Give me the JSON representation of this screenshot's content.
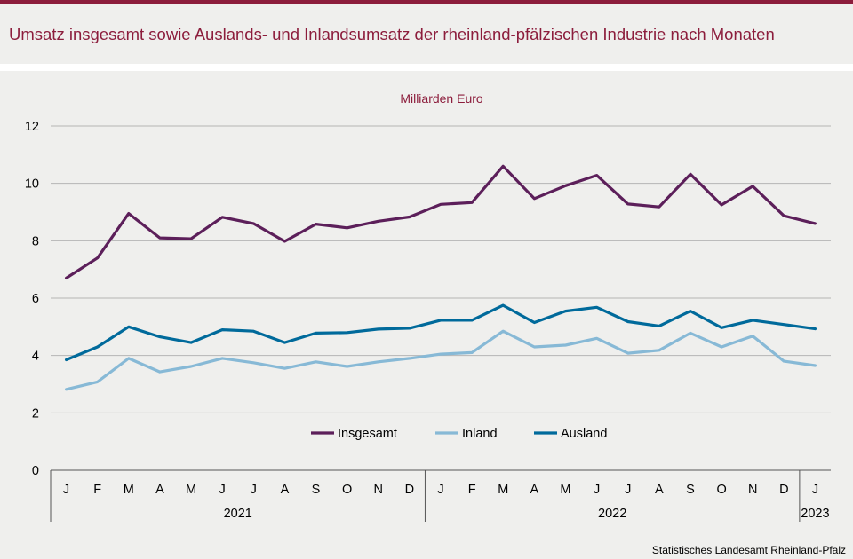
{
  "title": "Umsatz insgesamt sowie Auslands- und Inlandsumsatz der rheinland-pfälzischen Industrie nach Monaten",
  "source": "Statistisches Landesamt Rheinland-Pfalz",
  "colors": {
    "accent": "#8c1d3c",
    "background": "#efefed"
  },
  "chart_data": {
    "type": "line",
    "unit_label": "Milliarden Euro",
    "ylim": [
      0,
      12
    ],
    "yticks": [
      0,
      2,
      4,
      6,
      8,
      10,
      12
    ],
    "grid": true,
    "legend_position": "inside-bottom-center",
    "categories": [
      "J",
      "F",
      "M",
      "A",
      "M",
      "J",
      "J",
      "A",
      "S",
      "O",
      "N",
      "D",
      "J",
      "F",
      "M",
      "A",
      "M",
      "J",
      "J",
      "A",
      "S",
      "O",
      "N",
      "D",
      "J"
    ],
    "year_groups": [
      {
        "label": "2021",
        "count": 12
      },
      {
        "label": "2022",
        "count": 12
      },
      {
        "label": "2023",
        "count": 1
      }
    ],
    "series": [
      {
        "name": "Insgesamt",
        "color": "#5c1f5a",
        "values": [
          6.7,
          7.4,
          8.95,
          8.1,
          8.07,
          8.82,
          8.6,
          7.98,
          8.58,
          8.45,
          8.68,
          8.83,
          9.27,
          9.33,
          10.6,
          9.47,
          9.92,
          10.28,
          9.28,
          9.18,
          10.32,
          9.25,
          9.9,
          8.87,
          8.6
        ]
      },
      {
        "name": "Inland",
        "color": "#87b9d6",
        "values": [
          2.82,
          3.08,
          3.9,
          3.43,
          3.62,
          3.9,
          3.75,
          3.55,
          3.78,
          3.62,
          3.78,
          3.9,
          4.05,
          4.1,
          4.85,
          4.3,
          4.36,
          4.6,
          4.08,
          4.18,
          4.78,
          4.3,
          4.68,
          3.8,
          3.65
        ]
      },
      {
        "name": "Ausland",
        "color": "#006a9b",
        "values": [
          3.85,
          4.3,
          5.0,
          4.65,
          4.45,
          4.9,
          4.85,
          4.45,
          4.78,
          4.8,
          4.92,
          4.95,
          5.23,
          5.23,
          5.75,
          5.15,
          5.55,
          5.68,
          5.18,
          5.03,
          5.55,
          4.97,
          5.23,
          5.08,
          4.93
        ]
      }
    ]
  }
}
